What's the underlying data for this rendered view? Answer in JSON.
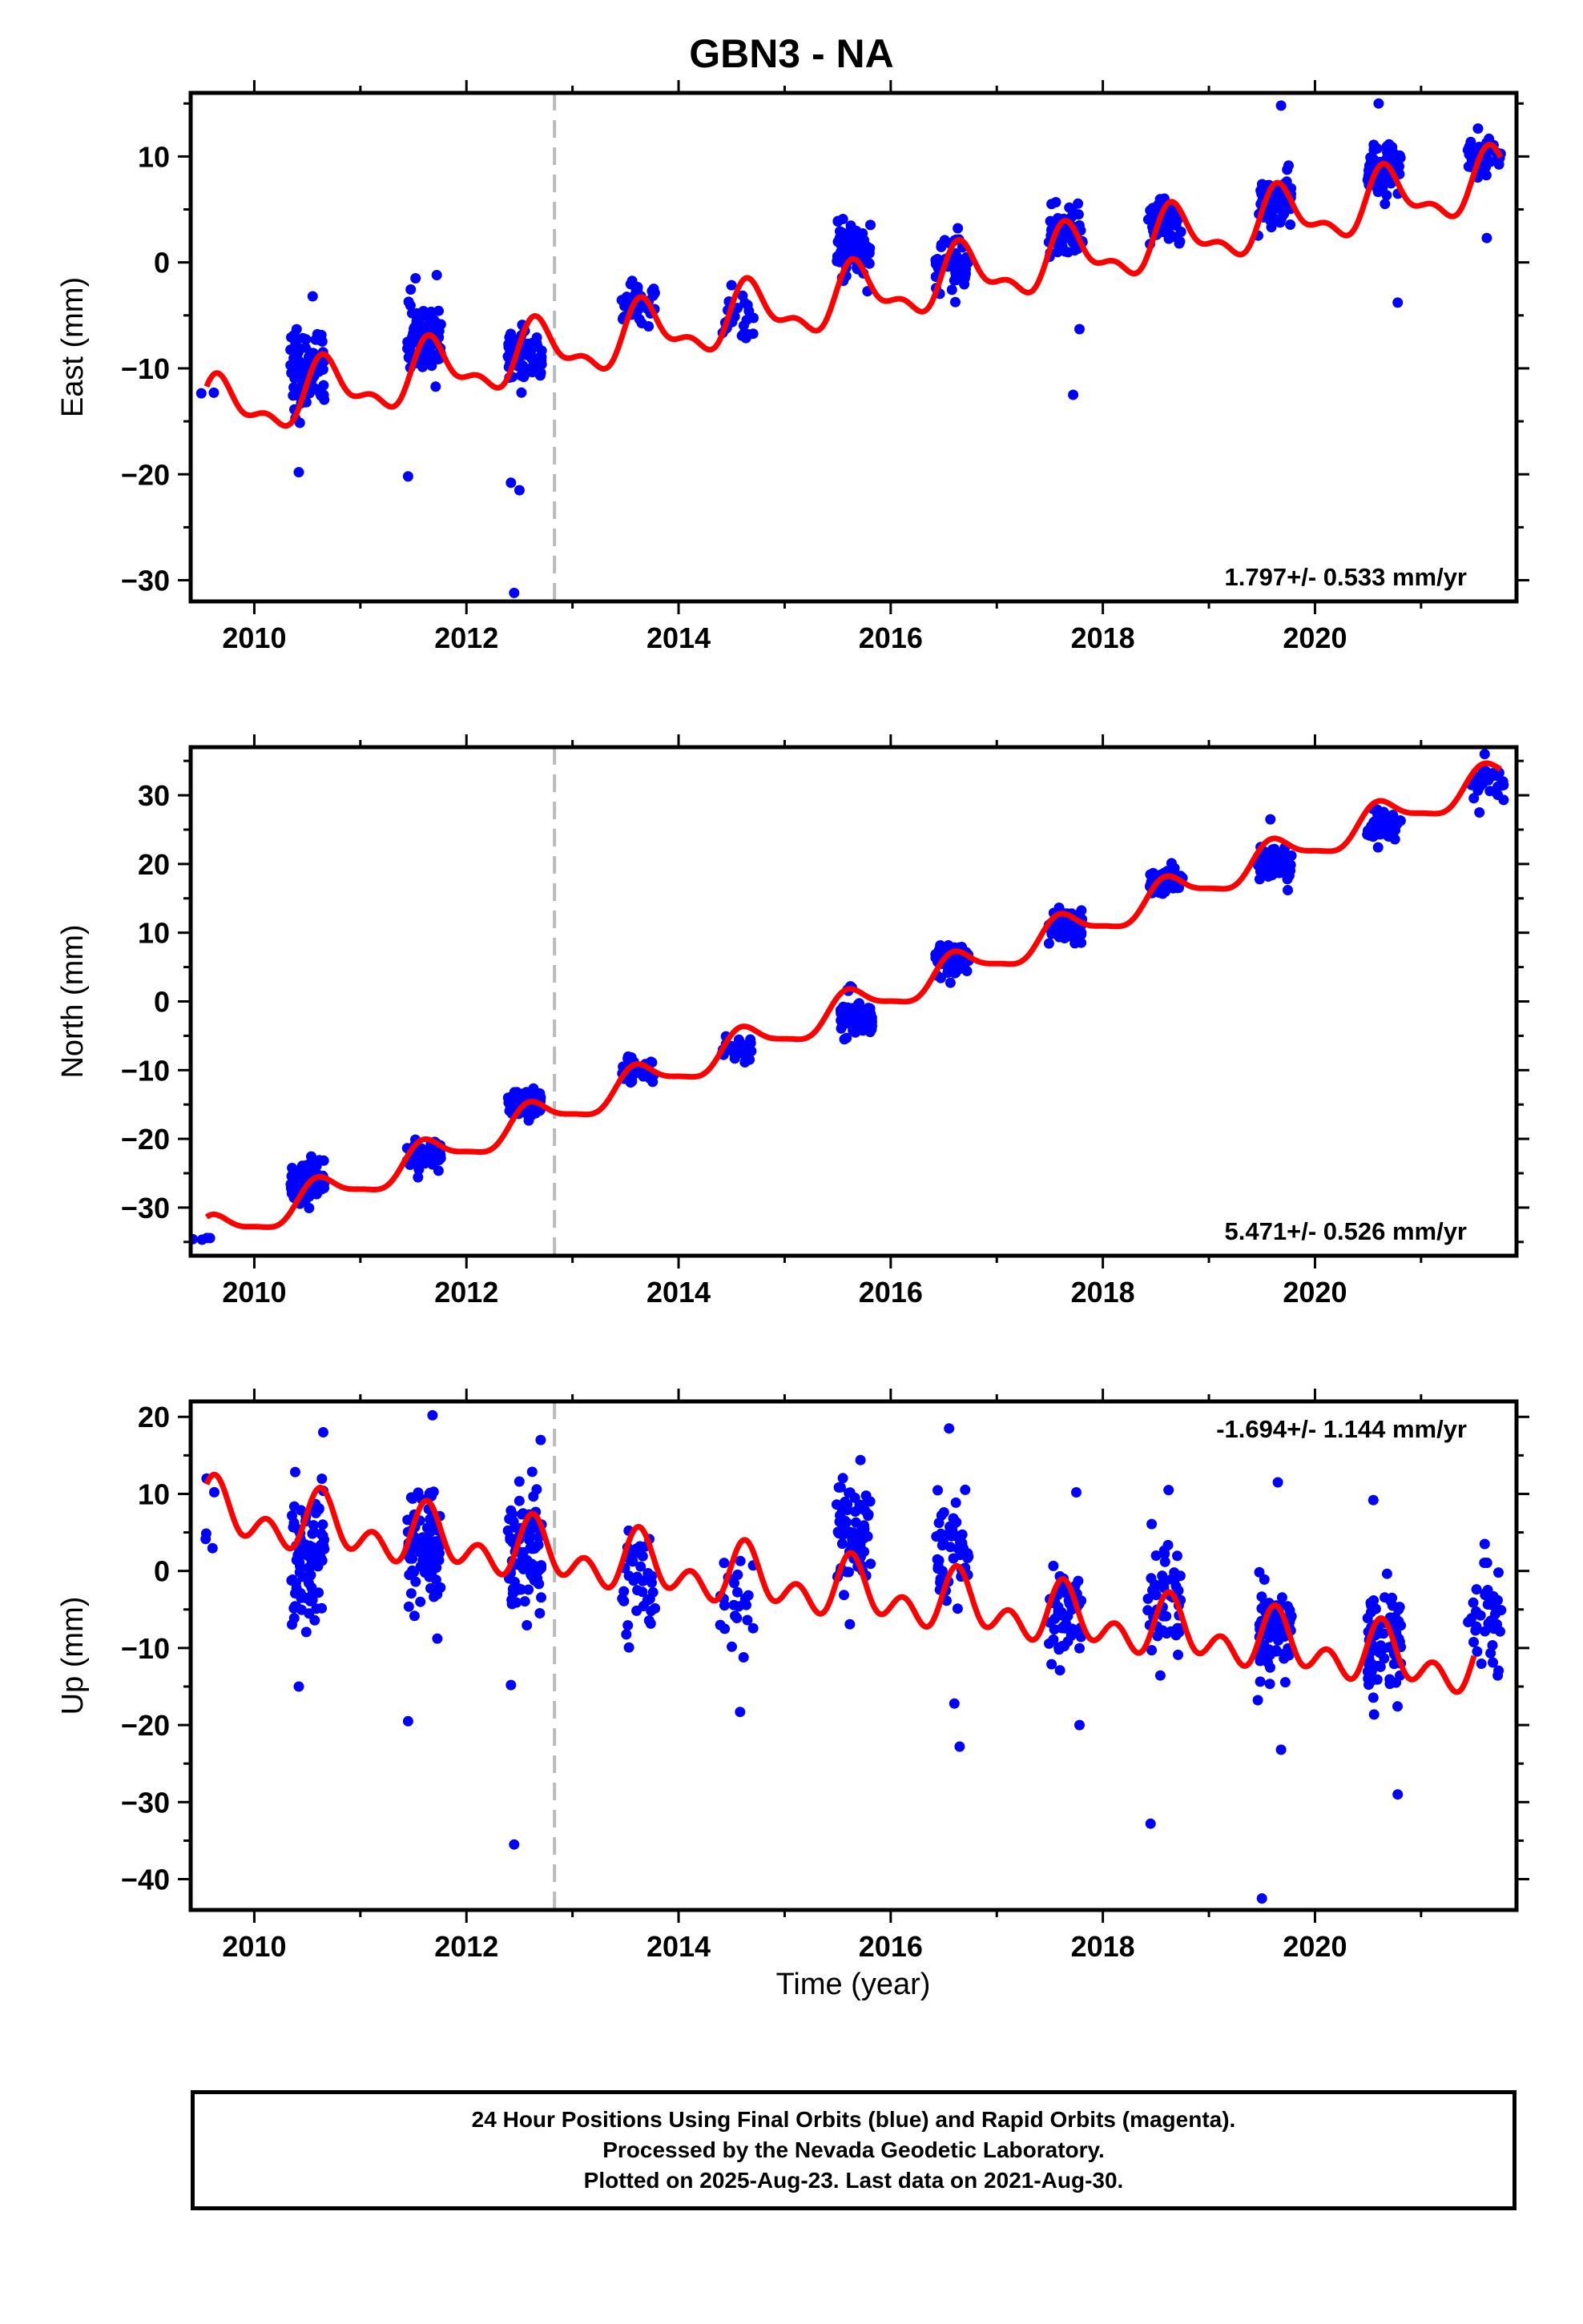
{
  "title": "GBN3 - NA",
  "xlabel": "Time (year)",
  "footer": {
    "line1": "24 Hour Positions Using Final Orbits (blue) and Rapid Orbits (magenta).",
    "line2": "Processed by the Nevada Geodetic Laboratory.",
    "line3": "Plotted on 2025-Aug-23. Last data on 2021-Aug-30."
  },
  "colors": {
    "data": "#0000ff",
    "model": "#ff0000",
    "equipment_change": "#bbbbbb",
    "frame": "#000000"
  },
  "chart_data": [
    {
      "type": "scatter",
      "component": "East",
      "ylabel": "East (mm)",
      "xlim": [
        2009.4,
        2021.9
      ],
      "ylim": [
        -32,
        16
      ],
      "xticks": [
        2010,
        2012,
        2014,
        2016,
        2018,
        2020
      ],
      "yticks": [
        -30,
        -20,
        -10,
        0,
        10
      ],
      "rate_label": "1.797+/- 0.533 mm/yr",
      "rate_label_position": "bottom-right",
      "equipment_change_x": 2012.83,
      "model": {
        "start": 2009.55,
        "end": 2021.75,
        "anchor_year": 2015.5,
        "anchor_value": -3.5,
        "rate": 1.797,
        "annual_amplitude": 2.5,
        "annual_phase_peak": 0.68,
        "semiannual_amplitude": 1.2,
        "semiannual_phase_peak": 0.62
      },
      "campaigns": [
        {
          "x": 2009.55,
          "y": -12.3,
          "spread": 0.4,
          "n": 2
        },
        {
          "x": 2010.5,
          "y": -10,
          "spread": 2.5,
          "n": 90
        },
        {
          "x": 2011.6,
          "y": -7,
          "spread": 1.8,
          "n": 90
        },
        {
          "x": 2012.55,
          "y": -8.5,
          "spread": 1.5,
          "n": 80
        },
        {
          "x": 2013.62,
          "y": -3.8,
          "spread": 1.3,
          "n": 40
        },
        {
          "x": 2014.55,
          "y": -5.5,
          "spread": 1.5,
          "n": 25
        },
        {
          "x": 2015.65,
          "y": 1,
          "spread": 1.8,
          "n": 80
        },
        {
          "x": 2016.58,
          "y": 0,
          "spread": 1.8,
          "n": 50
        },
        {
          "x": 2017.65,
          "y": 2.8,
          "spread": 1.5,
          "n": 60
        },
        {
          "x": 2018.58,
          "y": 3.8,
          "spread": 1.4,
          "n": 50
        },
        {
          "x": 2019.62,
          "y": 5.5,
          "spread": 1.8,
          "n": 80
        },
        {
          "x": 2020.65,
          "y": 9,
          "spread": 1.6,
          "n": 80
        },
        {
          "x": 2021.6,
          "y": 10,
          "spread": 1.2,
          "n": 40
        }
      ],
      "outliers": [
        {
          "x": 2010.42,
          "y": -19.8
        },
        {
          "x": 2010.55,
          "y": -3.2
        },
        {
          "x": 2011.45,
          "y": -20.2
        },
        {
          "x": 2011.52,
          "y": -1.5
        },
        {
          "x": 2011.72,
          "y": -1.2
        },
        {
          "x": 2012.42,
          "y": -20.8
        },
        {
          "x": 2012.5,
          "y": -21.5
        },
        {
          "x": 2012.45,
          "y": -31.2
        },
        {
          "x": 2017.72,
          "y": -12.5
        },
        {
          "x": 2017.78,
          "y": -6.3
        },
        {
          "x": 2019.68,
          "y": 14.8
        },
        {
          "x": 2020.6,
          "y": 15
        },
        {
          "x": 2020.78,
          "y": -3.8
        },
        {
          "x": 2021.62,
          "y": 2.3
        }
      ]
    },
    {
      "type": "scatter",
      "component": "North",
      "ylabel": "North (mm)",
      "xlim": [
        2009.4,
        2021.9
      ],
      "ylim": [
        -37,
        37
      ],
      "xticks": [
        2010,
        2012,
        2014,
        2016,
        2018,
        2020
      ],
      "yticks": [
        -30,
        -20,
        -10,
        0,
        10,
        20,
        30
      ],
      "rate_label": "5.471+/- 0.526 mm/yr",
      "rate_label_position": "bottom-right",
      "equipment_change_x": 2012.83,
      "model": {
        "start": 2009.55,
        "end": 2021.75,
        "anchor_year": 2015.5,
        "anchor_value": -1.5,
        "rate": 5.471,
        "annual_amplitude": 2.3,
        "annual_phase_peak": 0.62,
        "semiannual_amplitude": 0.6,
        "semiannual_phase_peak": 0.55
      },
      "campaigns": [
        {
          "x": 2009.55,
          "y": -34.5,
          "spread": 0.8,
          "n": 4
        },
        {
          "x": 2010.5,
          "y": -26,
          "spread": 1.8,
          "n": 90
        },
        {
          "x": 2011.6,
          "y": -22.5,
          "spread": 1.5,
          "n": 80
        },
        {
          "x": 2012.55,
          "y": -15,
          "spread": 1.4,
          "n": 80
        },
        {
          "x": 2013.62,
          "y": -10,
          "spread": 1.6,
          "n": 40
        },
        {
          "x": 2014.55,
          "y": -7,
          "spread": 1.5,
          "n": 25
        },
        {
          "x": 2015.68,
          "y": -2,
          "spread": 2,
          "n": 80
        },
        {
          "x": 2016.58,
          "y": 6,
          "spread": 1.8,
          "n": 50
        },
        {
          "x": 2017.65,
          "y": 11,
          "spread": 1.8,
          "n": 60
        },
        {
          "x": 2018.6,
          "y": 17.5,
          "spread": 1.3,
          "n": 50
        },
        {
          "x": 2019.62,
          "y": 20,
          "spread": 1.6,
          "n": 80
        },
        {
          "x": 2020.65,
          "y": 25.5,
          "spread": 1.3,
          "n": 80
        },
        {
          "x": 2021.62,
          "y": 32,
          "spread": 1.5,
          "n": 40
        }
      ],
      "outliers": [
        {
          "x": 2015.62,
          "y": 2.2
        },
        {
          "x": 2019.58,
          "y": 26.5
        },
        {
          "x": 2021.6,
          "y": 36
        },
        {
          "x": 2021.55,
          "y": 27.5
        }
      ]
    },
    {
      "type": "scatter",
      "component": "Up",
      "ylabel": "Up (mm)",
      "xlim": [
        2009.4,
        2021.9
      ],
      "ylim": [
        -44,
        22
      ],
      "xticks": [
        2010,
        2012,
        2014,
        2016,
        2018,
        2020
      ],
      "yticks": [
        -40,
        -30,
        -20,
        -10,
        0,
        10,
        20
      ],
      "rate_label": "-1.694+/- 1.144 mm/yr",
      "rate_label_position": "top-right",
      "equipment_change_x": 2012.83,
      "model": {
        "start": 2009.55,
        "end": 2021.5,
        "anchor_year": 2015.5,
        "anchor_value": -2.5,
        "rate": -1.694,
        "annual_amplitude": 2.5,
        "annual_phase_peak": 0.65,
        "semiannual_amplitude": 2.6,
        "semiannual_phase_peak": 0.62
      },
      "campaigns": [
        {
          "x": 2009.55,
          "y": 6,
          "spread": 4,
          "n": 4
        },
        {
          "x": 2010.5,
          "y": 2,
          "spread": 6,
          "n": 90
        },
        {
          "x": 2011.6,
          "y": 3,
          "spread": 5.5,
          "n": 90
        },
        {
          "x": 2012.55,
          "y": 2,
          "spread": 5.5,
          "n": 80
        },
        {
          "x": 2013.62,
          "y": -1.5,
          "spread": 4.5,
          "n": 40
        },
        {
          "x": 2014.55,
          "y": -3,
          "spread": 4,
          "n": 25
        },
        {
          "x": 2015.65,
          "y": 5.5,
          "spread": 5,
          "n": 80
        },
        {
          "x": 2016.58,
          "y": 3,
          "spread": 4.5,
          "n": 50
        },
        {
          "x": 2017.65,
          "y": -5.5,
          "spread": 4,
          "n": 60
        },
        {
          "x": 2018.58,
          "y": -4,
          "spread": 4.5,
          "n": 50
        },
        {
          "x": 2019.62,
          "y": -8,
          "spread": 4.5,
          "n": 80
        },
        {
          "x": 2020.65,
          "y": -9,
          "spread": 4.5,
          "n": 80
        },
        {
          "x": 2021.6,
          "y": -6,
          "spread": 4.5,
          "n": 40
        }
      ],
      "outliers": [
        {
          "x": 2009.55,
          "y": 12
        },
        {
          "x": 2010.65,
          "y": 18
        },
        {
          "x": 2010.42,
          "y": -15
        },
        {
          "x": 2011.45,
          "y": -19.5
        },
        {
          "x": 2011.68,
          "y": 20.2
        },
        {
          "x": 2012.7,
          "y": 17
        },
        {
          "x": 2012.45,
          "y": -35.5
        },
        {
          "x": 2012.42,
          "y": -14.8
        },
        {
          "x": 2014.58,
          "y": -18.3
        },
        {
          "x": 2016.55,
          "y": 18.5
        },
        {
          "x": 2016.6,
          "y": -17.2
        },
        {
          "x": 2016.65,
          "y": -22.8
        },
        {
          "x": 2017.75,
          "y": 10.2
        },
        {
          "x": 2017.78,
          "y": -20
        },
        {
          "x": 2018.45,
          "y": -32.8
        },
        {
          "x": 2018.62,
          "y": 10.5
        },
        {
          "x": 2019.5,
          "y": -42.5
        },
        {
          "x": 2019.65,
          "y": 11.5
        },
        {
          "x": 2019.68,
          "y": -23.2
        },
        {
          "x": 2020.55,
          "y": 9.2
        },
        {
          "x": 2020.78,
          "y": -29
        },
        {
          "x": 2021.6,
          "y": 3.5
        }
      ]
    }
  ]
}
